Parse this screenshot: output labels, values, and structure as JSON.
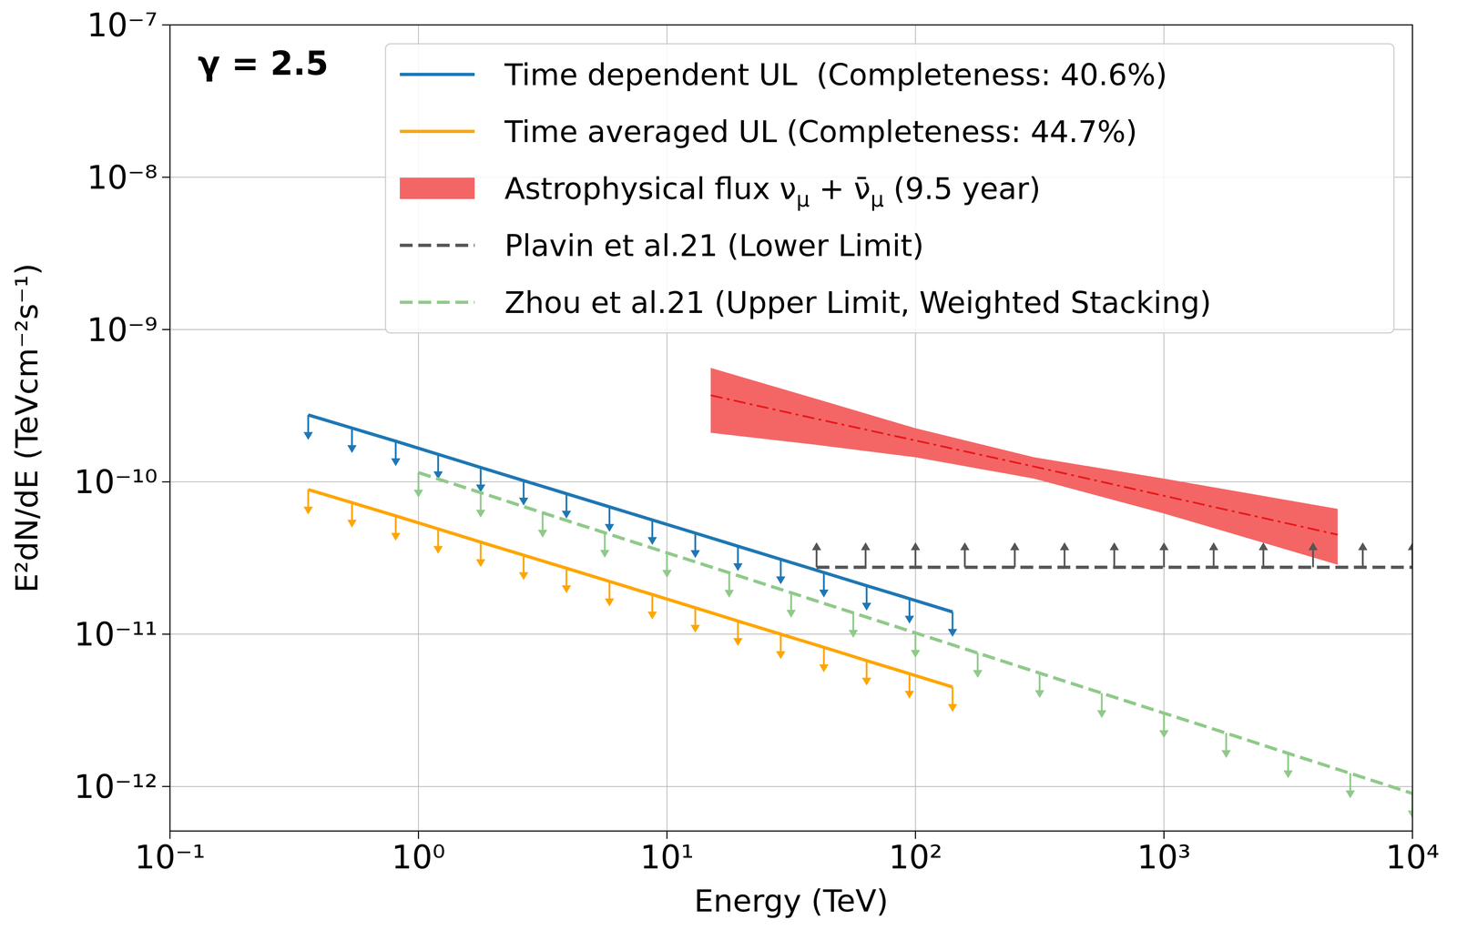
{
  "chart_data": {
    "type": "line",
    "annotation": "γ = 2.5",
    "x_label": "Energy (TeV)",
    "y_label": "E²dN/dE (TeVcm⁻²s⁻¹)",
    "log": true,
    "grid": true,
    "legend": "upper right",
    "xlim": [
      0.1,
      10000
    ],
    "ylim": [
      5.1e-13,
      1e-07
    ],
    "xticks": [
      {
        "value": 0.1,
        "label": "10⁻¹"
      },
      {
        "value": 1,
        "label": "10⁰"
      },
      {
        "value": 10,
        "label": "10¹"
      },
      {
        "value": 100,
        "label": "10²"
      },
      {
        "value": 1000,
        "label": "10³"
      },
      {
        "value": 10000,
        "label": "10⁴"
      }
    ],
    "yticks": [
      {
        "value": 1e-12,
        "label": "10⁻¹²"
      },
      {
        "value": 1e-11,
        "label": "10⁻¹¹"
      },
      {
        "value": 1e-10,
        "label": "10⁻¹⁰"
      },
      {
        "value": 1e-09,
        "label": "10⁻⁹"
      },
      {
        "value": 1e-08,
        "label": "10⁻⁸"
      },
      {
        "value": 1e-07,
        "label": "10⁻⁷"
      }
    ],
    "series": [
      {
        "name": "Time dependent UL  (Completeness: 40.6%)",
        "type": "line",
        "color": "#1f77b4",
        "line_style": "solid",
        "marker": "arrow_down",
        "x": [
          0.36,
          0.54,
          0.81,
          1.2,
          1.78,
          2.65,
          3.94,
          5.87,
          8.73,
          13.0,
          19.3,
          28.7,
          42.8,
          63.6,
          94.6,
          141
        ],
        "values": [
          2.75e-10,
          2.255e-10,
          1.849e-10,
          1.516e-10,
          1.243e-10,
          1.019e-10,
          8.36e-11,
          6.85e-11,
          5.62e-11,
          4.61e-11,
          3.78e-11,
          3.1e-11,
          2.54e-11,
          2.08e-11,
          1.71e-11,
          1.4e-11
        ]
      },
      {
        "name": "Time averaged UL (Completeness: 44.7%)",
        "type": "line",
        "color": "#ffa500",
        "line_style": "solid",
        "marker": "arrow_down",
        "x": [
          0.36,
          0.54,
          0.81,
          1.2,
          1.78,
          2.65,
          3.94,
          5.87,
          8.73,
          13.0,
          19.3,
          28.7,
          42.8,
          63.6,
          94.6,
          141
        ],
        "values": [
          8.9e-11,
          7.3e-11,
          5.98e-11,
          4.91e-11,
          4.02e-11,
          3.3e-11,
          2.71e-11,
          2.22e-11,
          1.82e-11,
          1.49e-11,
          1.22e-11,
          1e-11,
          8.2e-12,
          6.7e-12,
          5.5e-12,
          4.5e-12
        ]
      },
      {
        "name": "Astrophysical flux νμ + ν̄μ (9.5 year)",
        "type": "band",
        "color": "#f46666",
        "line_style": "dashdot",
        "x": [
          15,
          40,
          100,
          300,
          1000,
          5000
        ],
        "values": [
          3.7e-10,
          2.59e-10,
          1.87e-10,
          1.26e-10,
          8.1e-11,
          4.5e-11
        ],
        "upper": [
          5.6e-10,
          3.5e-10,
          2.25e-10,
          1.45e-10,
          1.05e-10,
          6.65e-11
        ],
        "lower": [
          2.1e-10,
          1.75e-10,
          1.45e-10,
          1.05e-10,
          6.2e-11,
          2.86e-11
        ]
      },
      {
        "name": "Plavin et al.21 (Lower Limit)",
        "type": "line",
        "color": "#555555",
        "line_style": "dashed",
        "marker": "arrow_up",
        "x": [
          40,
          63,
          100,
          158,
          251,
          398,
          631,
          1000,
          1585,
          2512,
          3981,
          6310,
          10000
        ],
        "values": [
          2.75e-11,
          2.75e-11,
          2.75e-11,
          2.75e-11,
          2.75e-11,
          2.75e-11,
          2.75e-11,
          2.75e-11,
          2.75e-11,
          2.75e-11,
          2.75e-11,
          2.75e-11,
          2.75e-11
        ]
      },
      {
        "name": "Zhou et al.21 (Upper Limit, Weighted Stacking)",
        "type": "line",
        "color": "#8fca8a",
        "line_style": "dashed",
        "marker": "arrow_down",
        "x": [
          1,
          1.78,
          3.16,
          5.62,
          10,
          17.8,
          31.6,
          56.2,
          100,
          178,
          316,
          562,
          1000,
          1780,
          3160,
          5620,
          10000
        ],
        "values": [
          1.15e-10,
          8.49e-11,
          6.27e-11,
          4.63e-11,
          3.42e-11,
          2.53e-11,
          1.87e-11,
          1.38e-11,
          1.02e-11,
          7.52e-12,
          5.55e-12,
          4.1e-12,
          3.03e-12,
          2.24e-12,
          1.65e-12,
          1.22e-12,
          9e-13
        ]
      }
    ]
  }
}
